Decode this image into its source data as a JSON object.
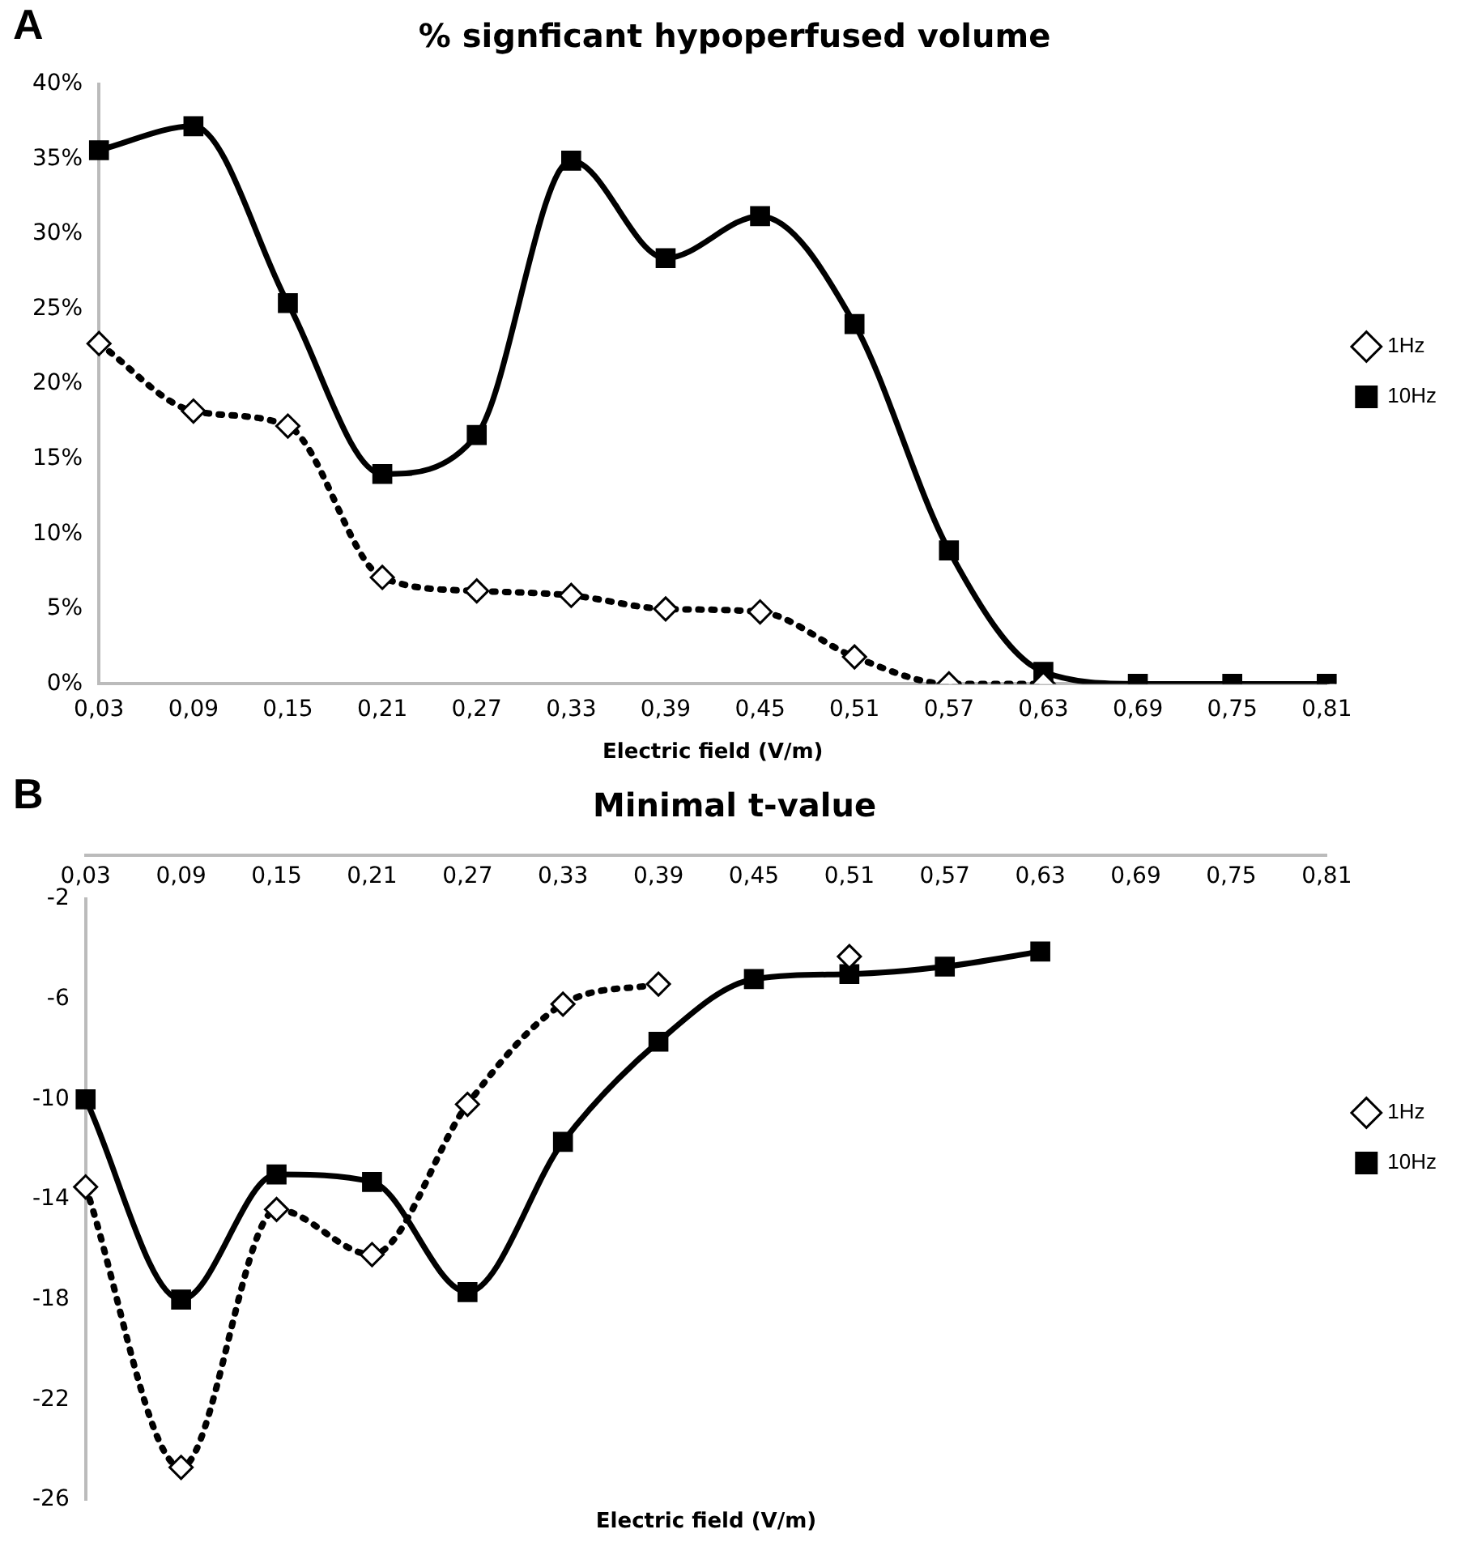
{
  "chart_data": [
    {
      "type": "line",
      "title": "% signficant hypoperfused volume",
      "xlabel": "Electric field (V/m)",
      "annotations": [
        "A"
      ],
      "categories": [
        "0,03",
        "0,09",
        "0,15",
        "0,21",
        "0,27",
        "0,33",
        "0,39",
        "0,45",
        "0,51",
        "0,57",
        "0,63",
        "0,69",
        "0,75",
        "0,81"
      ],
      "series": [
        {
          "name": "1Hz",
          "color": "#000000",
          "marker": "diamond",
          "line_style": "dotted",
          "values": [
            22.7,
            18.2,
            17.2,
            7.1,
            6.2,
            5.9,
            5.0,
            4.8,
            1.8,
            0,
            0,
            null,
            null,
            null
          ]
        },
        {
          "name": "10Hz",
          "color": "#000000",
          "marker": "square",
          "line_style": "solid",
          "values": [
            35.6,
            37.2,
            25.4,
            14.0,
            16.6,
            34.9,
            28.4,
            31.2,
            24.0,
            8.9,
            0.8,
            0,
            0,
            0
          ]
        }
      ],
      "ylim": [
        0,
        40
      ],
      "yticks": [
        {
          "value": 0,
          "label": "0%"
        },
        {
          "value": 5,
          "label": "5%"
        },
        {
          "value": 10,
          "label": "10%"
        },
        {
          "value": 15,
          "label": "15%"
        },
        {
          "value": 20,
          "label": "20%"
        },
        {
          "value": 25,
          "label": "25%"
        },
        {
          "value": 30,
          "label": "30%"
        },
        {
          "value": 35,
          "label": "35%"
        },
        {
          "value": 40,
          "label": "40%"
        }
      ],
      "grid": false,
      "legend": "right"
    },
    {
      "type": "line",
      "title": "Minimal t-value",
      "xlabel": "Electric field (V/m)",
      "annotations": [
        "B"
      ],
      "categories": [
        "0,03",
        "0,09",
        "0,15",
        "0,21",
        "0,27",
        "0,33",
        "0,39",
        "0,45",
        "0,51",
        "0,57",
        "0,63",
        "0,69",
        "0,75",
        "0,81"
      ],
      "series": [
        {
          "name": "1Hz",
          "color": "#000000",
          "marker": "diamond",
          "line_style": "dotted",
          "values": [
            -13.5,
            -24.7,
            -14.4,
            -16.2,
            -10.2,
            -6.2,
            -5.4,
            null,
            -4.3,
            null,
            null,
            null,
            null,
            null
          ]
        },
        {
          "name": "10Hz",
          "color": "#000000",
          "marker": "square",
          "line_style": "solid",
          "values": [
            -10.0,
            -18.0,
            -13.0,
            -13.3,
            -17.7,
            -11.7,
            -7.7,
            -5.2,
            -5.0,
            -4.7,
            -4.1,
            null,
            null,
            null
          ]
        }
      ],
      "ylim": [
        -26,
        -2
      ],
      "yticks": [
        -26,
        -22,
        -18,
        -14,
        -10,
        -6,
        -2
      ],
      "grid": false,
      "legend": "right"
    }
  ]
}
